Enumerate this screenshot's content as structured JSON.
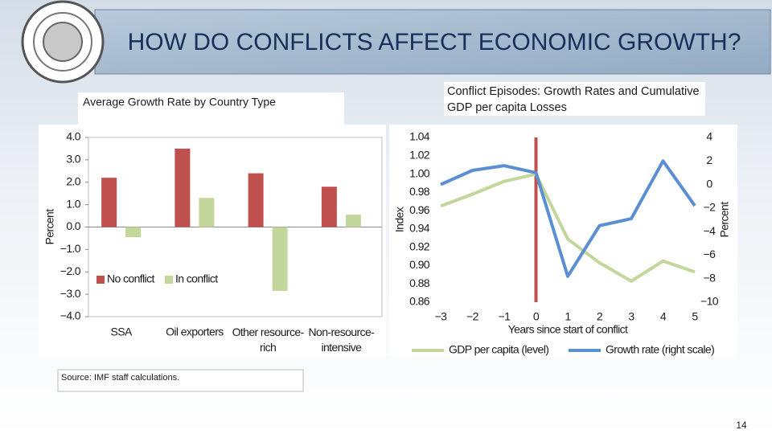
{
  "slide": {
    "title": "HOW DO CONFLICTS AFFECT ECONOMIC GROWTH?",
    "source": "Source: IMF staff calculations.",
    "page": 14
  },
  "chart_data": [
    {
      "type": "bar",
      "title": "Average Growth Rate by Country Type",
      "categories": [
        "SSA",
        "Oil exporters",
        "Other resource-rich",
        "Non-resource-intensive"
      ],
      "series": [
        {
          "name": "No conflict",
          "color": "#c0504d",
          "values": [
            2.2,
            3.5,
            2.4,
            1.8
          ]
        },
        {
          "name": "In conflict",
          "color": "#c3d69b",
          "values": [
            -0.45,
            1.3,
            -2.85,
            0.55
          ]
        }
      ],
      "ylabel": "Percent",
      "ylim": [
        -4,
        4
      ],
      "yticks": [
        {
          "value": -4,
          "label": "−4.0"
        },
        {
          "value": -3,
          "label": "−3.0"
        },
        {
          "value": -2,
          "label": "−2.0"
        },
        {
          "value": -1,
          "label": "−1.0"
        },
        {
          "value": 0,
          "label": "0.0"
        },
        {
          "value": 1,
          "label": "1.0"
        },
        {
          "value": 2,
          "label": "2.0"
        },
        {
          "value": 3,
          "label": "3.0"
        },
        {
          "value": 4,
          "label": "4.0"
        }
      ],
      "legend": "lower left",
      "grid": false
    },
    {
      "type": "line",
      "title": "Conflict Episodes: Growth Rates and Cumulative GDP per capita Losses",
      "x": [
        -3,
        -2,
        -1,
        0,
        1,
        2,
        3,
        4,
        5
      ],
      "xlim": [
        -3,
        5
      ],
      "xticks": [
        {
          "value": -3,
          "label": "−3"
        },
        {
          "value": -2,
          "label": "−2"
        },
        {
          "value": -1,
          "label": "−1"
        },
        0,
        1,
        2,
        3,
        4,
        5
      ],
      "series": [
        {
          "name": "GDP per capita (level)",
          "color": "#c3d69b",
          "values": [
            0.965,
            0.978,
            0.992,
            1.0,
            0.929,
            0.903,
            0.883,
            0.905,
            0.893
          ]
        },
        {
          "name": "Growth rate (right scale)",
          "color": "#5b8fd3",
          "axis": "y2",
          "values": [
            0.0,
            1.2,
            1.6,
            1.0,
            -7.8,
            -3.5,
            -2.9,
            2.0,
            -1.8
          ]
        }
      ],
      "xlabel": "Years since start of conflict",
      "ylabel": "Index",
      "y2label": "Percent",
      "ylim": [
        0.86,
        1.04
      ],
      "yticks": [
        0.86,
        0.88,
        {
          "value": 0.9,
          "label": "0.90"
        },
        0.92,
        0.94,
        0.96,
        0.98,
        {
          "value": 1,
          "label": "1.00"
        },
        1.02,
        1.04
      ],
      "y2lim": [
        -10,
        4
      ],
      "y2ticks": [
        {
          "value": -10,
          "label": "−10"
        },
        {
          "value": -8,
          "label": "−8"
        },
        {
          "value": -6,
          "label": "−6"
        },
        {
          "value": -4,
          "label": "−4"
        },
        {
          "value": -2,
          "label": "−2"
        },
        0,
        2,
        4
      ],
      "vline": {
        "x": 0,
        "color": "#c0504d"
      },
      "legend": "bottom",
      "grid": false
    }
  ]
}
